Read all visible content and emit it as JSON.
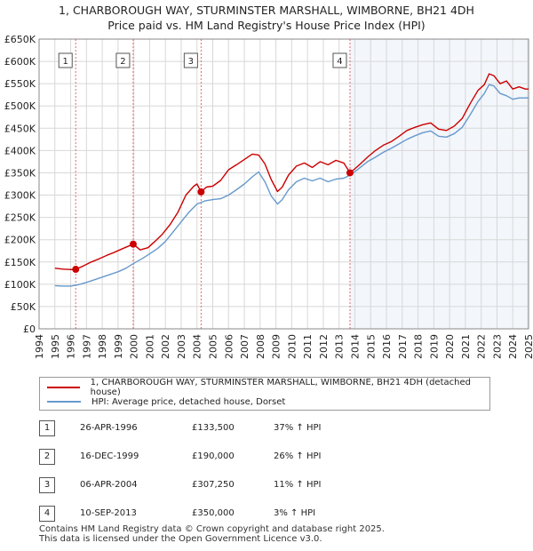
{
  "title_lines": [
    "1, CHARBOROUGH WAY, STURMINSTER MARSHALL, WIMBORNE, BH21 4DH",
    "Price paid vs. HM Land Registry's House Price Index (HPI)"
  ],
  "colors": {
    "property": "#cc0000",
    "hpi": "#6699cc",
    "band": "#dde6f3",
    "marker_line": "#dd4444"
  },
  "chart_data": {
    "type": "line",
    "title": "Price paid vs. HM Land Registry's House Price Index (HPI)",
    "xlabel": "",
    "ylabel": "",
    "xlim": [
      1994,
      2025
    ],
    "ylim": [
      0,
      650000
    ],
    "x_ticks": [
      "1994",
      "1995",
      "1996",
      "1997",
      "1998",
      "1999",
      "2000",
      "2001",
      "2002",
      "2003",
      "2004",
      "2005",
      "2006",
      "2007",
      "2008",
      "2009",
      "2010",
      "2011",
      "2012",
      "2013",
      "2014",
      "2015",
      "2016",
      "2017",
      "2018",
      "2019",
      "2020",
      "2021",
      "2022",
      "2023",
      "2024",
      "2025"
    ],
    "y_ticks": [
      "£0",
      "£50K",
      "£100K",
      "£150K",
      "£200K",
      "£250K",
      "£300K",
      "£350K",
      "£400K",
      "£450K",
      "£500K",
      "£550K",
      "£600K",
      "£650K"
    ],
    "grid": true,
    "series": [
      {
        "name": "1, CHARBOROUGH WAY, STURMINSTER MARSHALL, WIMBORNE, BH21 4DH (detached house)",
        "color": "#cc0000",
        "x": [
          1995.0,
          1995.5,
          1996.0,
          1996.32,
          1996.8,
          1997.3,
          1997.8,
          1998.3,
          1998.8,
          1999.3,
          1999.7,
          1999.96,
          2000.4,
          2000.9,
          2001.3,
          2001.8,
          2002.3,
          2002.8,
          2003.3,
          2003.8,
          2004.0,
          2004.26,
          2004.6,
          2005.0,
          2005.5,
          2006.0,
          2006.5,
          2007.0,
          2007.5,
          2007.9,
          2008.3,
          2008.7,
          2009.1,
          2009.4,
          2009.8,
          2010.3,
          2010.8,
          2011.3,
          2011.8,
          2012.3,
          2012.8,
          2013.3,
          2013.69,
          2014.2,
          2014.8,
          2015.3,
          2015.8,
          2016.3,
          2016.8,
          2017.3,
          2017.8,
          2018.3,
          2018.8,
          2019.3,
          2019.8,
          2020.3,
          2020.8,
          2021.3,
          2021.8,
          2022.2,
          2022.5,
          2022.8,
          2023.2,
          2023.6,
          2024.0,
          2024.4,
          2024.8,
          2025.0
        ],
        "values": [
          136000,
          134000,
          133000,
          133500,
          141000,
          150000,
          157000,
          165000,
          172000,
          180000,
          186000,
          190000,
          177000,
          182000,
          195000,
          212000,
          234000,
          262000,
          300000,
          320000,
          325000,
          307250,
          318000,
          320000,
          333000,
          357000,
          368000,
          380000,
          392000,
          390000,
          370000,
          335000,
          308000,
          318000,
          345000,
          365000,
          372000,
          362000,
          375000,
          368000,
          378000,
          372000,
          350000,
          365000,
          385000,
          400000,
          412000,
          420000,
          432000,
          445000,
          452000,
          458000,
          462000,
          448000,
          445000,
          455000,
          472000,
          505000,
          535000,
          548000,
          572000,
          568000,
          550000,
          556000,
          538000,
          543000,
          538000,
          538000
        ]
      },
      {
        "name": "HPI: Average price, detached house, Dorset",
        "color": "#6699cc",
        "x": [
          1995.0,
          1995.5,
          1996.0,
          1996.5,
          1997.0,
          1997.5,
          1998.0,
          1998.5,
          1999.0,
          1999.5,
          2000.0,
          2000.5,
          2001.0,
          2001.5,
          2002.0,
          2002.5,
          2003.0,
          2003.5,
          2004.0,
          2004.5,
          2005.0,
          2005.5,
          2006.0,
          2006.5,
          2007.0,
          2007.5,
          2007.9,
          2008.3,
          2008.7,
          2009.1,
          2009.4,
          2009.8,
          2010.3,
          2010.8,
          2011.3,
          2011.8,
          2012.3,
          2012.8,
          2013.3,
          2013.7,
          2014.2,
          2014.8,
          2015.3,
          2015.8,
          2016.3,
          2016.8,
          2017.3,
          2017.8,
          2018.3,
          2018.8,
          2019.3,
          2019.8,
          2020.3,
          2020.8,
          2021.3,
          2021.8,
          2022.2,
          2022.5,
          2022.8,
          2023.2,
          2023.6,
          2024.0,
          2024.4,
          2024.8,
          2025.0
        ],
        "values": [
          97000,
          96000,
          96000,
          99000,
          104000,
          110000,
          116000,
          122000,
          128000,
          136000,
          147000,
          157000,
          168000,
          180000,
          196000,
          218000,
          240000,
          262000,
          280000,
          287000,
          290000,
          292000,
          300000,
          312000,
          325000,
          341000,
          352000,
          330000,
          298000,
          280000,
          290000,
          312000,
          330000,
          338000,
          332000,
          338000,
          330000,
          336000,
          338000,
          345000,
          358000,
          375000,
          385000,
          396000,
          405000,
          415000,
          425000,
          433000,
          440000,
          444000,
          432000,
          430000,
          438000,
          452000,
          480000,
          510000,
          528000,
          548000,
          545000,
          528000,
          523000,
          515000,
          518000,
          518000,
          518000
        ]
      }
    ],
    "markers": [
      {
        "label": "1",
        "x": 1996.32,
        "value": 133500
      },
      {
        "label": "2",
        "x": 1999.96,
        "value": 190000
      },
      {
        "label": "3",
        "x": 2004.26,
        "value": 307250
      },
      {
        "label": "4",
        "x": 2013.69,
        "value": 350000
      }
    ],
    "legend_position": "below"
  },
  "legend": {
    "property_label": "1, CHARBOROUGH WAY, STURMINSTER MARSHALL, WIMBORNE, BH21 4DH (detached house)",
    "hpi_label": "HPI: Average price, detached house, Dorset"
  },
  "sales": [
    {
      "num": "1",
      "date": "26-APR-1996",
      "price": "£133,500",
      "hpi": "37% ↑ HPI"
    },
    {
      "num": "2",
      "date": "16-DEC-1999",
      "price": "£190,000",
      "hpi": "26% ↑ HPI"
    },
    {
      "num": "3",
      "date": "06-APR-2004",
      "price": "£307,250",
      "hpi": "11% ↑ HPI"
    },
    {
      "num": "4",
      "date": "10-SEP-2013",
      "price": "£350,000",
      "hpi": "3% ↑ HPI"
    }
  ],
  "footer_lines": [
    "Contains HM Land Registry data © Crown copyright and database right 2025.",
    "This data is licensed under the Open Government Licence v3.0."
  ]
}
